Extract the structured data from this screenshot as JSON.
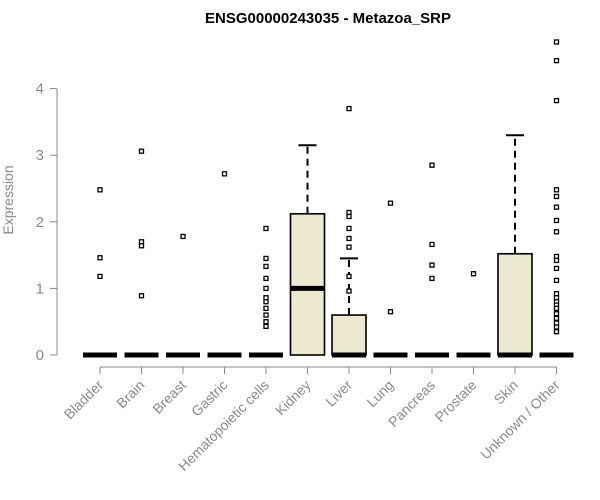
{
  "chart_data": {
    "type": "box",
    "title": "ENSG00000243035 - Metazoa_SRP",
    "ylabel": "Expression",
    "xlabel": "",
    "ylim": [
      0,
      4.75
    ],
    "yticks": [
      0,
      1,
      2,
      3,
      4
    ],
    "grid": false,
    "colors": {
      "box_fill": "#ede8d0",
      "stroke": "#000000",
      "axis": "#8a8a8a"
    },
    "categories": [
      "Bladder",
      "Brain",
      "Breast",
      "Gastric",
      "Hematopoietic cells",
      "Kidney",
      "Liver",
      "Lung",
      "Pancreas",
      "Prostate",
      "Skin",
      "Unknown / Other"
    ],
    "boxes": [
      {
        "q1": 0,
        "median": 0,
        "q3": 0,
        "whisker_low": 0,
        "whisker_high": 0,
        "outliers": [
          2.48,
          1.46,
          1.18
        ]
      },
      {
        "q1": 0,
        "median": 0,
        "q3": 0,
        "whisker_low": 0,
        "whisker_high": 0,
        "outliers": [
          3.06,
          1.7,
          1.64,
          0.89
        ]
      },
      {
        "q1": 0,
        "median": 0,
        "q3": 0,
        "whisker_low": 0,
        "whisker_high": 0,
        "outliers": [
          1.78
        ]
      },
      {
        "q1": 0,
        "median": 0,
        "q3": 0,
        "whisker_low": 0,
        "whisker_high": 0,
        "outliers": [
          2.72
        ]
      },
      {
        "q1": 0,
        "median": 0,
        "q3": 0,
        "whisker_low": 0,
        "whisker_high": 0,
        "outliers": [
          1.9,
          1.45,
          1.33,
          1.15,
          1.0,
          0.86,
          0.8,
          0.7,
          0.6,
          0.5,
          0.43
        ]
      },
      {
        "q1": 0,
        "median": 1.0,
        "q3": 2.12,
        "whisker_low": 0,
        "whisker_high": 3.15,
        "outliers": []
      },
      {
        "q1": 0,
        "median": 0,
        "q3": 0.6,
        "whisker_low": 0,
        "whisker_high": 1.45,
        "outliers": [
          3.7,
          2.14,
          2.08,
          1.9,
          1.75,
          1.62,
          1.18,
          0.96
        ]
      },
      {
        "q1": 0,
        "median": 0,
        "q3": 0,
        "whisker_low": 0,
        "whisker_high": 0,
        "outliers": [
          2.28,
          0.65
        ]
      },
      {
        "q1": 0,
        "median": 0,
        "q3": 0,
        "whisker_low": 0,
        "whisker_high": 0,
        "outliers": [
          2.85,
          1.66,
          1.35,
          1.15
        ]
      },
      {
        "q1": 0,
        "median": 0,
        "q3": 0,
        "whisker_low": 0,
        "whisker_high": 0,
        "outliers": [
          1.22
        ]
      },
      {
        "q1": 0,
        "median": 0,
        "q3": 1.52,
        "whisker_low": 0,
        "whisker_high": 3.3,
        "outliers": []
      },
      {
        "q1": 0,
        "median": 0,
        "q3": 0,
        "whisker_low": 0,
        "whisker_high": 0,
        "outliers": [
          4.7,
          4.42,
          3.82,
          2.48,
          2.38,
          2.22,
          2.02,
          1.85,
          1.48,
          1.42,
          1.3,
          1.12,
          0.92,
          0.86,
          0.8,
          0.75,
          0.7,
          0.62,
          0.55,
          0.48,
          0.42,
          0.35
        ]
      }
    ]
  }
}
